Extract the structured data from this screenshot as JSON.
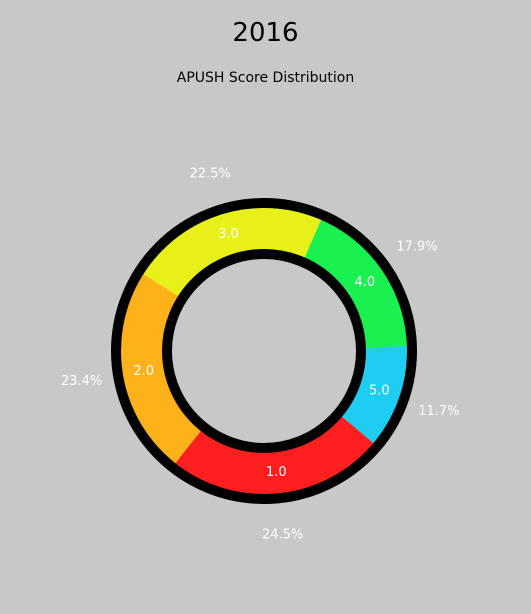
{
  "chart_data": {
    "type": "pie",
    "title": "2016",
    "subtitle": "APUSH Score Distribution",
    "slices": [
      {
        "label": "5.0",
        "value": 11.7,
        "pct_label": "11.7%",
        "color": "#1ecdf0"
      },
      {
        "label": "1.0",
        "value": 24.5,
        "pct_label": "24.5%",
        "color": "#ff1f1f"
      },
      {
        "label": "2.0",
        "value": 23.4,
        "pct_label": "23.4%",
        "color": "#fdb21a"
      },
      {
        "label": "3.0",
        "value": 22.5,
        "pct_label": "22.5%",
        "color": "#e8f01a"
      },
      {
        "label": "4.0",
        "value": 17.9,
        "pct_label": "17.9%",
        "color": "#1af04f"
      }
    ]
  }
}
